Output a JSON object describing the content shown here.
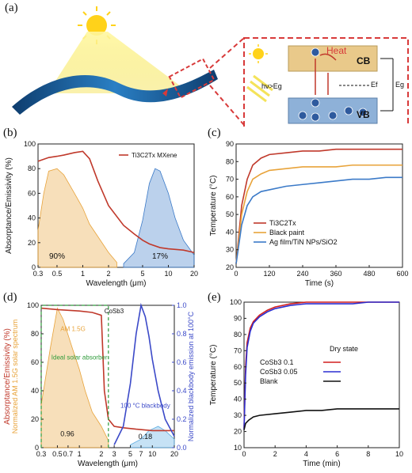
{
  "panel_labels": [
    "(a)",
    "(b)",
    "(c)",
    "(d)",
    "(e)"
  ],
  "panel_a": {
    "heat_label": "Heat",
    "cb_label": "CB",
    "vb_label": "VB",
    "photon_label": "hν>Eg",
    "ef_label": "Ef",
    "eg_label": "Eg",
    "electron_symbol": "e",
    "colors": {
      "sheet": "#1f6fb0",
      "dashed_box": "#d83a3a",
      "cb_fill": "#e9c98a",
      "vb_fill": "#8eb1d8"
    }
  },
  "chart_data": [
    {
      "panel": "b",
      "type": "line",
      "ylabel": "Absorptance/Emissivity (%)",
      "xlabel": "Wavelength (μm)",
      "x_scale": "log",
      "xlim": [
        0.3,
        20
      ],
      "ylim": [
        0,
        100
      ],
      "xticks": [
        "0.3",
        "0.5",
        "1",
        "2",
        "5",
        "10",
        "20"
      ],
      "yticks": [
        "0",
        "20",
        "40",
        "60",
        "80",
        "100"
      ],
      "legend": [
        "Ti3C2Tx MXene"
      ],
      "annotations": [
        "90%",
        "17%"
      ],
      "series": [
        {
          "name": "Ti3C2Tx MXene",
          "color": "#c0392b",
          "x": [
            0.3,
            0.4,
            0.5,
            0.6,
            0.8,
            1.0,
            1.2,
            1.5,
            2,
            3,
            4,
            5,
            6,
            8,
            10,
            15,
            20
          ],
          "y": [
            86,
            89,
            90,
            91,
            93,
            94,
            88,
            70,
            50,
            34,
            27,
            22,
            19,
            16,
            15,
            14,
            12
          ]
        }
      ],
      "area_series": [
        {
          "color": "#e8a33a",
          "x": [
            0.3,
            0.35,
            0.4,
            0.5,
            0.6,
            0.8,
            1.0,
            1.2,
            1.5,
            2,
            2.5
          ],
          "y": [
            30,
            60,
            78,
            80,
            75,
            60,
            48,
            35,
            25,
            12,
            4
          ]
        },
        {
          "color": "#3b7ac8",
          "x": [
            3,
            4,
            5,
            6,
            7,
            8,
            10,
            12,
            15,
            20
          ],
          "y": [
            3,
            12,
            38,
            68,
            80,
            78,
            60,
            40,
            22,
            10
          ]
        }
      ]
    },
    {
      "panel": "c",
      "type": "line",
      "ylabel": "Temperature (°C)",
      "xlabel": "Time (s)",
      "xlim": [
        0,
        600
      ],
      "ylim": [
        20,
        90
      ],
      "xticks": [
        "0",
        "120",
        "240",
        "360",
        "480",
        "600"
      ],
      "yticks": [
        "20",
        "30",
        "40",
        "50",
        "60",
        "70",
        "80",
        "90"
      ],
      "series": [
        {
          "name": "Ti3C2Tx",
          "color": "#c0392b",
          "x": [
            0,
            20,
            40,
            60,
            90,
            120,
            180,
            240,
            300,
            360,
            420,
            480,
            540,
            600
          ],
          "y": [
            22,
            55,
            70,
            78,
            82,
            84,
            85,
            86,
            86,
            87,
            87,
            87,
            87,
            87
          ]
        },
        {
          "name": "Black paint",
          "color": "#e8a33a",
          "x": [
            0,
            20,
            40,
            60,
            90,
            120,
            180,
            240,
            300,
            360,
            420,
            480,
            540,
            600
          ],
          "y": [
            22,
            50,
            63,
            70,
            73,
            75,
            76,
            77,
            77,
            77,
            78,
            78,
            78,
            78
          ]
        },
        {
          "name": "Ag film/TiN NPs/SiO2",
          "color": "#3b7ac8",
          "x": [
            0,
            20,
            40,
            60,
            90,
            120,
            180,
            240,
            300,
            360,
            420,
            480,
            540,
            600
          ],
          "y": [
            22,
            44,
            55,
            60,
            63,
            64,
            66,
            67,
            68,
            69,
            70,
            70,
            71,
            71
          ]
        }
      ]
    },
    {
      "panel": "d",
      "type": "line",
      "ylabel": "Absorptance/Emissivity (%)",
      "ylabel2": "Normalized AM 1.5G solar spectrum",
      "ylabel_right": "Normalized blackbody emission at 100°C",
      "xlabel": "Wavelength (μm)",
      "x_scale": "log",
      "xlim": [
        0.3,
        20
      ],
      "ylim": [
        0,
        100
      ],
      "ylim_right": [
        0,
        1
      ],
      "xticks": [
        "0.3",
        "0.5",
        "0.7",
        "1",
        "2",
        "3",
        "5",
        "7",
        "10",
        "20"
      ],
      "yticks": [
        "0",
        "20",
        "40",
        "60",
        "80",
        "100"
      ],
      "yticks_right": [
        "0.0",
        "0.2",
        "0.4",
        "0.6",
        "0.8",
        "1.0"
      ],
      "legend": [
        "CoSb3"
      ],
      "annotations": [
        "AM 1.5G",
        "Ideal solar absorber",
        "100 °C blackbody",
        "0.96",
        "0.18"
      ],
      "series": [
        {
          "name": "CoSb3",
          "color": "#c0392b",
          "x": [
            0.3,
            0.5,
            1,
            1.5,
            2,
            2.2,
            2.5,
            3,
            4,
            6,
            10,
            20
          ],
          "y": [
            98,
            97,
            96,
            95,
            93,
            40,
            20,
            15,
            14,
            13,
            12,
            12
          ]
        },
        {
          "name": "100 °C blackbody",
          "color": "#3b49c8",
          "x": [
            3,
            4,
            5,
            6,
            7,
            8,
            9,
            10,
            12,
            15,
            20
          ],
          "y": [
            2,
            15,
            45,
            80,
            100,
            92,
            78,
            62,
            40,
            20,
            8
          ]
        }
      ],
      "area_series": [
        {
          "color": "#e8a33a",
          "x": [
            0.3,
            0.4,
            0.5,
            0.6,
            0.8,
            1.0,
            1.2,
            1.5,
            2,
            2.5
          ],
          "y": [
            30,
            70,
            98,
            90,
            70,
            55,
            40,
            25,
            15,
            5
          ]
        },
        {
          "color": "#5dade2",
          "x": [
            5,
            7,
            9,
            12,
            15,
            20
          ],
          "y": [
            2,
            6,
            12,
            15,
            12,
            6
          ]
        }
      ]
    },
    {
      "panel": "e",
      "type": "line",
      "ylabel": "Temperature (°C)",
      "xlabel": "Time (min)",
      "xlim": [
        0,
        10
      ],
      "ylim": [
        10,
        100
      ],
      "xticks": [
        "0",
        "2",
        "4",
        "6",
        "8",
        "10"
      ],
      "yticks": [
        "10",
        "20",
        "30",
        "40",
        "50",
        "60",
        "70",
        "80",
        "90",
        "100"
      ],
      "legend_title": "Dry state",
      "series": [
        {
          "name": "CoSb3 0.1",
          "color": "#d21f1f",
          "x": [
            0,
            0.1,
            0.2,
            0.4,
            0.6,
            1,
            1.5,
            2,
            3,
            4,
            5,
            6,
            7,
            8,
            9,
            10
          ],
          "y": [
            22,
            60,
            75,
            84,
            88,
            92,
            95,
            97,
            99,
            100,
            100,
            100,
            100,
            100,
            100,
            100
          ]
        },
        {
          "name": "CoSb3 0.05",
          "color": "#2c2fd0",
          "x": [
            0,
            0.1,
            0.2,
            0.4,
            0.6,
            1,
            1.5,
            2,
            3,
            4,
            5,
            6,
            7,
            8,
            9,
            10
          ],
          "y": [
            21,
            55,
            72,
            82,
            87,
            91,
            94,
            96,
            98,
            99,
            99,
            99,
            99,
            100,
            100,
            100
          ]
        },
        {
          "name": "Blank",
          "color": "#111111",
          "x": [
            0,
            0.1,
            0.3,
            0.6,
            1,
            2,
            3,
            4,
            5,
            6,
            7,
            8,
            9,
            10
          ],
          "y": [
            21,
            25,
            27,
            29,
            30,
            31,
            32,
            33,
            33,
            34,
            34,
            34,
            34,
            34
          ]
        }
      ]
    }
  ]
}
